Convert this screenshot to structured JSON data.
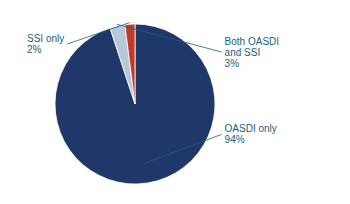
{
  "chart_data": {
    "type": "pie",
    "categories": [
      "OASDI only",
      "Both OASDI\nand SSI",
      "SSI only"
    ],
    "values": [
      94,
      3,
      2
    ],
    "value_labels": [
      "94%",
      "3%",
      "2%"
    ],
    "colors": [
      "#1f3869",
      "#b8c8d8",
      "#c0392b"
    ],
    "data_labels": true
  }
}
